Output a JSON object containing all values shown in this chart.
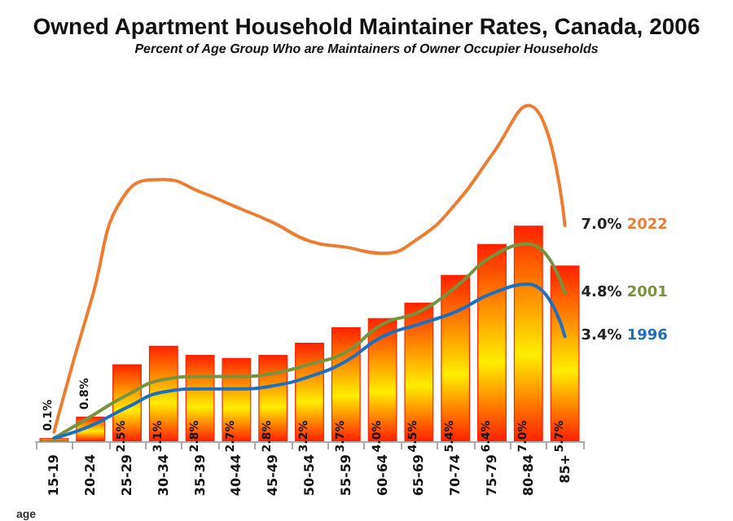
{
  "chart_data": {
    "type": "bar",
    "title": "Owned Apartment Household Maintainer Rates, Canada, 2006",
    "subtitle": "Percent of Age Group Who are Maintainers of Owner Occupier Households",
    "xlabel": "age",
    "categories": [
      "15-19",
      "20-24",
      "25-29",
      "30-34",
      "35-39",
      "40-44",
      "45-49",
      "50-54",
      "55-59",
      "60-64",
      "65-69",
      "70-74",
      "75-79",
      "80-84",
      "85+"
    ],
    "tick_labels": "x",
    "legend": false,
    "grid": false,
    "marker": "none",
    "series": [
      {
        "color": "#ff2200",
        "values": [
          0.1,
          0.8,
          2.5,
          3.1,
          2.8,
          2.7,
          2.8,
          3.2,
          3.7,
          4.0,
          4.5,
          5.4,
          6.4,
          7.0,
          5.7
        ],
        "value_labels": [
          "0.1%",
          "0.8%",
          "2.5%",
          "3.1%",
          "2.8%",
          "2.7%",
          "2.8%",
          "3.2%",
          "3.7%",
          "4.0%",
          "4.5%",
          "5.4%",
          "6.4%",
          "7.0%",
          "5.7%"
        ]
      },
      {
        "type": "line",
        "name": "2022",
        "color": "#ed7d31",
        "values": [
          0.3,
          4.5,
          8.1,
          8.5,
          8.1,
          7.6,
          7.1,
          6.5,
          6.3,
          6.1,
          6.6,
          7.7,
          9.3,
          10.9,
          7.0
        ],
        "value_labels": [
          null,
          null,
          null,
          null,
          null,
          null,
          null,
          null,
          null,
          null,
          null,
          null,
          null,
          null,
          "7.0%"
        ]
      },
      {
        "type": "line",
        "name": "2001",
        "color": "#77933c",
        "values": [
          0.1,
          0.8,
          1.5,
          2.0,
          2.1,
          2.1,
          2.2,
          2.5,
          2.9,
          3.8,
          4.2,
          5.0,
          6.0,
          6.4,
          4.8
        ],
        "value_labels": [
          null,
          null,
          null,
          null,
          null,
          null,
          null,
          null,
          null,
          null,
          null,
          null,
          null,
          null,
          "4.8%"
        ]
      },
      {
        "type": "line",
        "name": "1996",
        "color": "#1f6fbf",
        "values": [
          0.1,
          0.5,
          1.1,
          1.6,
          1.7,
          1.7,
          1.8,
          2.1,
          2.6,
          3.4,
          3.8,
          4.2,
          4.8,
          5.1,
          3.4
        ],
        "value_labels": [
          null,
          null,
          null,
          null,
          null,
          null,
          null,
          null,
          null,
          null,
          null,
          null,
          null,
          null,
          "3.4%"
        ]
      }
    ]
  }
}
